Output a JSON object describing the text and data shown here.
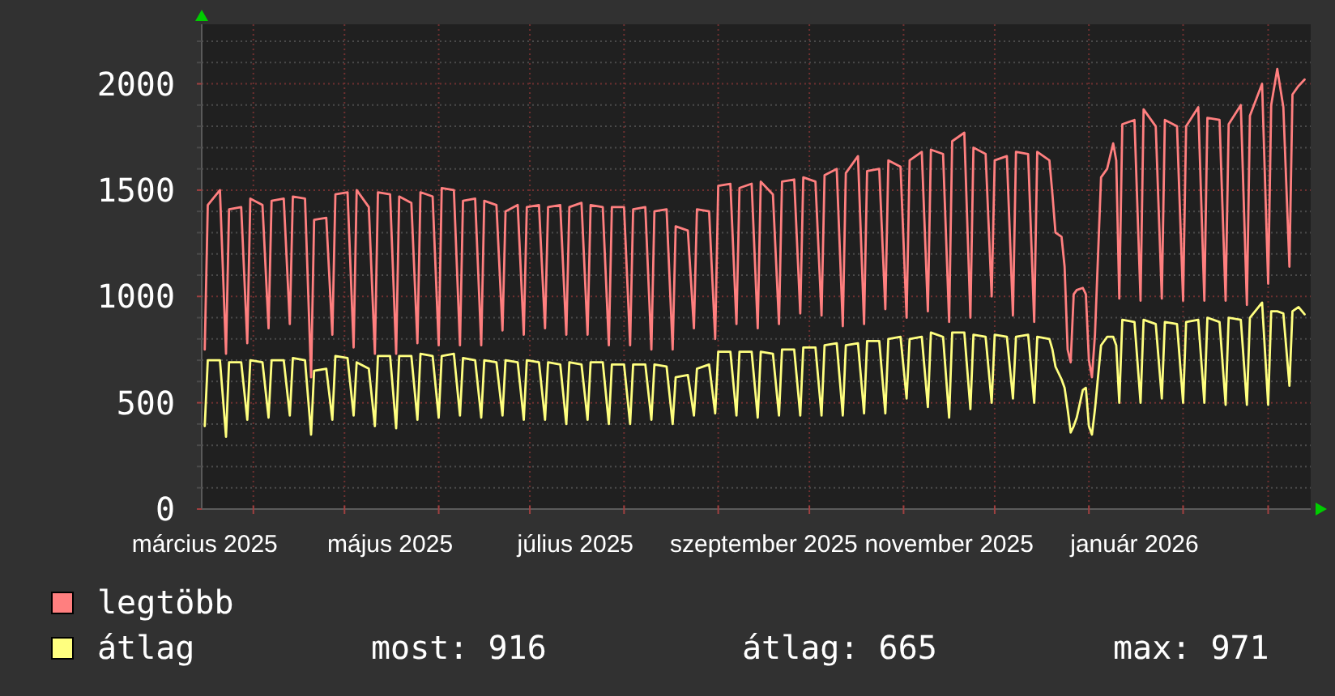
{
  "chart_data": {
    "type": "line",
    "x": [
      "2025-03-16",
      "2025-03-17",
      "2025-03-21",
      "2025-03-23",
      "2025-03-24",
      "2025-03-28",
      "2025-03-30",
      "2025-03-31",
      "2025-04-04",
      "2025-04-06",
      "2025-04-07",
      "2025-04-11",
      "2025-04-13",
      "2025-04-14",
      "2025-04-18",
      "2025-04-20",
      "2025-04-21",
      "2025-04-25",
      "2025-04-27",
      "2025-04-28",
      "2025-05-02",
      "2025-05-04",
      "2025-05-05",
      "2025-05-09",
      "2025-05-11",
      "2025-05-12",
      "2025-05-16",
      "2025-05-18",
      "2025-05-19",
      "2025-05-23",
      "2025-05-25",
      "2025-05-26",
      "2025-05-30",
      "2025-06-01",
      "2025-06-02",
      "2025-06-06",
      "2025-06-08",
      "2025-06-09",
      "2025-06-13",
      "2025-06-15",
      "2025-06-16",
      "2025-06-20",
      "2025-06-22",
      "2025-06-23",
      "2025-06-27",
      "2025-06-29",
      "2025-06-30",
      "2025-07-04",
      "2025-07-06",
      "2025-07-07",
      "2025-07-11",
      "2025-07-13",
      "2025-07-14",
      "2025-07-18",
      "2025-07-20",
      "2025-07-21",
      "2025-07-25",
      "2025-07-27",
      "2025-07-28",
      "2025-08-01",
      "2025-08-03",
      "2025-08-04",
      "2025-08-08",
      "2025-08-10",
      "2025-08-11",
      "2025-08-15",
      "2025-08-17",
      "2025-08-18",
      "2025-08-22",
      "2025-08-24",
      "2025-08-25",
      "2025-08-29",
      "2025-08-31",
      "2025-09-01",
      "2025-09-05",
      "2025-09-07",
      "2025-09-08",
      "2025-09-12",
      "2025-09-14",
      "2025-09-15",
      "2025-09-19",
      "2025-09-21",
      "2025-09-22",
      "2025-09-26",
      "2025-09-28",
      "2025-09-29",
      "2025-10-03",
      "2025-10-05",
      "2025-10-06",
      "2025-10-10",
      "2025-10-12",
      "2025-10-13",
      "2025-10-17",
      "2025-10-19",
      "2025-10-20",
      "2025-10-24",
      "2025-10-26",
      "2025-10-27",
      "2025-10-31",
      "2025-11-02",
      "2025-11-03",
      "2025-11-07",
      "2025-11-09",
      "2025-11-10",
      "2025-11-14",
      "2025-11-16",
      "2025-11-17",
      "2025-11-21",
      "2025-11-23",
      "2025-11-24",
      "2025-11-28",
      "2025-11-30",
      "2025-12-01",
      "2025-12-05",
      "2025-12-07",
      "2025-12-08",
      "2025-12-12",
      "2025-12-14",
      "2025-12-15",
      "2025-12-19",
      "2025-12-20",
      "2025-12-21",
      "2025-12-23",
      "2025-12-24",
      "2025-12-25",
      "2025-12-26",
      "2025-12-27",
      "2025-12-28",
      "2025-12-30",
      "2025-12-31",
      "2026-01-01",
      "2026-01-02",
      "2026-01-03",
      "2026-01-05",
      "2026-01-07",
      "2026-01-09",
      "2026-01-10",
      "2026-01-11",
      "2026-01-12",
      "2026-01-16",
      "2026-01-18",
      "2026-01-19",
      "2026-01-23",
      "2026-01-25",
      "2026-01-26",
      "2026-01-30",
      "2026-02-01",
      "2026-02-02",
      "2026-02-06",
      "2026-02-08",
      "2026-02-09",
      "2026-02-13",
      "2026-02-15",
      "2026-02-16",
      "2026-02-20",
      "2026-02-22",
      "2026-02-23",
      "2026-02-27",
      "2026-03-01",
      "2026-03-02",
      "2026-03-04",
      "2026-03-06",
      "2026-03-08",
      "2026-03-09",
      "2026-03-11",
      "2026-03-13"
    ],
    "series": [
      {
        "name": "legtöbb",
        "color": "#ff7f7f",
        "values": [
          750,
          1430,
          1500,
          730,
          1410,
          1420,
          780,
          1460,
          1430,
          850,
          1450,
          1460,
          870,
          1470,
          1460,
          620,
          1360,
          1370,
          820,
          1480,
          1490,
          760,
          1500,
          1420,
          730,
          1490,
          1480,
          730,
          1470,
          1440,
          780,
          1490,
          1470,
          770,
          1510,
          1500,
          770,
          1450,
          1460,
          770,
          1450,
          1430,
          840,
          1400,
          1430,
          820,
          1420,
          1430,
          850,
          1420,
          1430,
          820,
          1420,
          1440,
          820,
          1430,
          1420,
          770,
          1420,
          1420,
          770,
          1410,
          1420,
          750,
          1400,
          1410,
          750,
          1330,
          1310,
          850,
          1410,
          1400,
          800,
          1520,
          1530,
          870,
          1510,
          1530,
          850,
          1540,
          1480,
          870,
          1540,
          1550,
          920,
          1560,
          1540,
          910,
          1570,
          1600,
          860,
          1580,
          1660,
          870,
          1590,
          1600,
          940,
          1640,
          1610,
          900,
          1640,
          1680,
          930,
          1690,
          1670,
          880,
          1730,
          1770,
          900,
          1700,
          1670,
          1000,
          1640,
          1660,
          910,
          1680,
          1670,
          880,
          1680,
          1640,
          1480,
          1300,
          1280,
          1140,
          750,
          690,
          1010,
          1030,
          1040,
          1010,
          700,
          620,
          820,
          1560,
          1600,
          1720,
          1640,
          990,
          1810,
          1830,
          980,
          1880,
          1800,
          990,
          1830,
          1800,
          980,
          1800,
          1890,
          980,
          1840,
          1830,
          980,
          1810,
          1900,
          960,
          1850,
          2000,
          1060,
          1900,
          2070,
          1890,
          1140,
          1950,
          1990,
          2020
        ]
      },
      {
        "name": "átlag",
        "color": "#ffff7f",
        "values": [
          390,
          700,
          700,
          340,
          690,
          690,
          420,
          700,
          690,
          430,
          700,
          700,
          440,
          710,
          700,
          350,
          650,
          660,
          420,
          720,
          710,
          440,
          690,
          660,
          390,
          720,
          720,
          380,
          720,
          720,
          420,
          730,
          720,
          430,
          720,
          730,
          440,
          710,
          700,
          430,
          700,
          690,
          440,
          700,
          690,
          420,
          700,
          690,
          420,
          690,
          680,
          400,
          690,
          680,
          420,
          690,
          690,
          400,
          680,
          680,
          400,
          680,
          680,
          420,
          680,
          670,
          400,
          620,
          630,
          440,
          660,
          680,
          450,
          740,
          740,
          440,
          740,
          740,
          430,
          740,
          730,
          440,
          750,
          750,
          440,
          760,
          760,
          440,
          770,
          780,
          440,
          770,
          780,
          450,
          790,
          790,
          450,
          800,
          810,
          520,
          800,
          810,
          480,
          830,
          810,
          430,
          830,
          830,
          470,
          820,
          810,
          500,
          820,
          810,
          520,
          810,
          820,
          500,
          810,
          800,
          750,
          670,
          610,
          570,
          470,
          360,
          390,
          430,
          560,
          570,
          390,
          350,
          470,
          770,
          810,
          810,
          770,
          500,
          890,
          880,
          500,
          890,
          870,
          520,
          880,
          870,
          500,
          880,
          890,
          500,
          900,
          880,
          490,
          900,
          890,
          490,
          900,
          971,
          490,
          930,
          930,
          920,
          580,
          930,
          950,
          916
        ]
      }
    ],
    "xlim": [
      "2025-03-15",
      "2026-03-15"
    ],
    "xticks": [
      {
        "value": "2025-03-16",
        "label": "március 2025"
      },
      {
        "value": "2025-04-01",
        "label": null
      },
      {
        "value": "2025-05-01",
        "label": null
      },
      {
        "value": "2025-05-16",
        "label": "május 2025"
      },
      {
        "value": "2025-06-01",
        "label": null
      },
      {
        "value": "2025-07-01",
        "label": null
      },
      {
        "value": "2025-07-16",
        "label": "július 2025"
      },
      {
        "value": "2025-08-01",
        "label": null
      },
      {
        "value": "2025-09-01",
        "label": null
      },
      {
        "value": "2025-09-16",
        "label": "szeptember 2025"
      },
      {
        "value": "2025-10-01",
        "label": null
      },
      {
        "value": "2025-11-01",
        "label": null
      },
      {
        "value": "2025-11-16",
        "label": "november 2025"
      },
      {
        "value": "2025-12-01",
        "label": null
      },
      {
        "value": "2026-01-01",
        "label": null
      },
      {
        "value": "2026-01-16",
        "label": "január 2026"
      },
      {
        "value": "2026-02-01",
        "label": null
      },
      {
        "value": "2026-03-01",
        "label": null
      }
    ],
    "ylim": [
      0,
      2280
    ],
    "yticks": [
      0,
      {
        "value": 100,
        "label": null
      },
      {
        "value": 200,
        "label": null
      },
      {
        "value": 300,
        "label": null
      },
      {
        "value": 400,
        "label": null
      },
      500,
      {
        "value": 600,
        "label": null
      },
      {
        "value": 700,
        "label": null
      },
      {
        "value": 800,
        "label": null
      },
      {
        "value": 900,
        "label": null
      },
      1000,
      {
        "value": 1100,
        "label": null
      },
      {
        "value": 1200,
        "label": null
      },
      {
        "value": 1300,
        "label": null
      },
      {
        "value": 1400,
        "label": null
      },
      1500,
      {
        "value": 1600,
        "label": null
      },
      {
        "value": 1700,
        "label": null
      },
      {
        "value": 1800,
        "label": null
      },
      {
        "value": 1900,
        "label": null
      },
      2000,
      {
        "value": 2100,
        "label": null
      },
      {
        "value": 2200,
        "label": null
      }
    ],
    "grid": true,
    "legend": "bottom left",
    "annotations": [
      "most: 916",
      "átlag: 665",
      "max: 971"
    ]
  }
}
